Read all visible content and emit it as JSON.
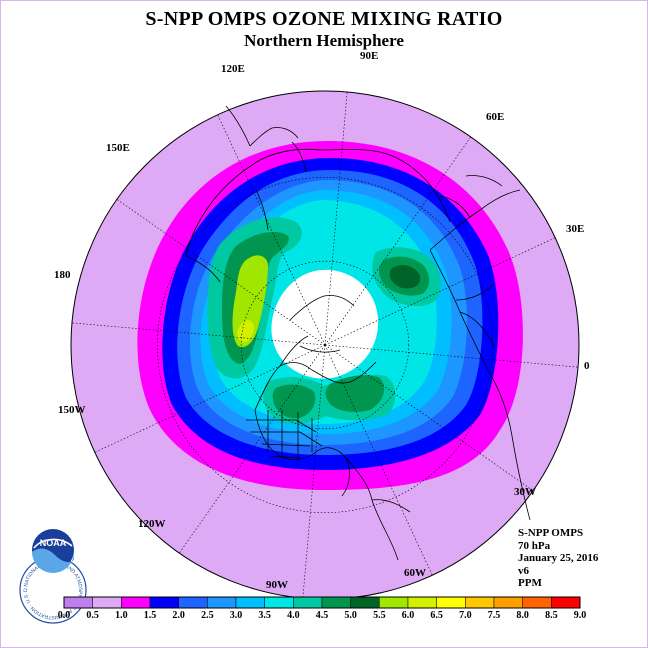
{
  "title": "S-NPP OMPS OZONE MIXING RATIO",
  "subtitle": "Northern Hemisphere",
  "longitude_labels": [
    "90E",
    "120E",
    "60E",
    "150E",
    "30E",
    "180",
    "0",
    "150W",
    "30W",
    "120W",
    "60W",
    "90W"
  ],
  "info": {
    "instrument": "S-NPP OMPS",
    "level": "70 hPa",
    "date": "January 25, 2016",
    "version": "v6",
    "units": "PPM"
  },
  "logo": {
    "text": "NOAA",
    "ring_text": "NATIONAL OCEANIC AND ATMOSPHERIC ADMINISTRATION · U.S. DEPARTMENT OF COMMERCE"
  },
  "colorbar": {
    "ticks": [
      "0.0",
      "0.5",
      "1.0",
      "1.5",
      "2.0",
      "2.5",
      "3.0",
      "3.5",
      "4.0",
      "4.5",
      "5.0",
      "5.5",
      "6.0",
      "6.5",
      "7.0",
      "7.5",
      "8.0",
      "8.5",
      "9.0"
    ],
    "colors": [
      "#bf7fee",
      "#dfaaf5",
      "#ff00ff",
      "#0000ff",
      "#1e64ff",
      "#1e96ff",
      "#00beff",
      "#00e6e6",
      "#00c8a0",
      "#009650",
      "#006428",
      "#a0e600",
      "#d2f000",
      "#ffff00",
      "#ffc800",
      "#ffa000",
      "#ff6400",
      "#ff0000",
      "#8b5a3c"
    ]
  },
  "chart_data": {
    "type": "polar-stereographic contour map",
    "field": "ozone mixing ratio",
    "level": "70 hPa",
    "units": "PPM",
    "scale_min": 0.0,
    "scale_max": 9.0,
    "scale_step": 0.5,
    "no_data_region": "polar night (white)"
  }
}
